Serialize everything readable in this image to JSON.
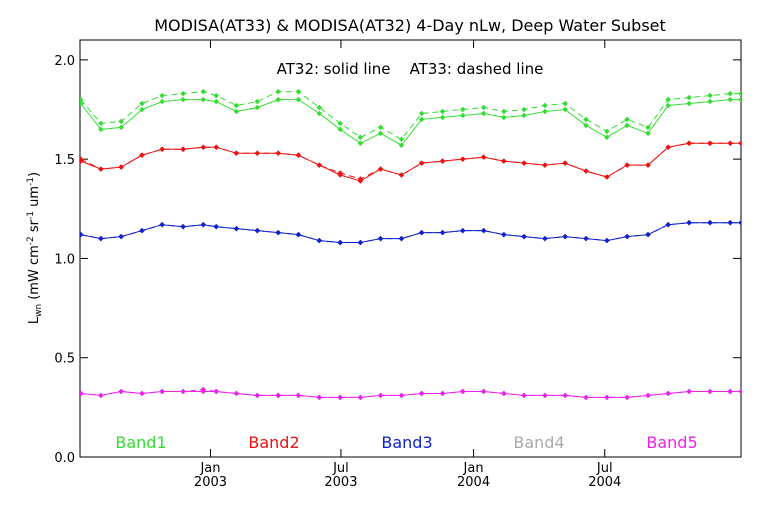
{
  "chart_data": {
    "type": "line",
    "title": "MODISA(AT33) & MODISA(AT32) 4-Day nLw, Deep Water Subset",
    "annotation": "AT32: solid line    AT33: dashed line",
    "ylabel_main": "L",
    "ylabel_sub": "wn",
    "ylabel_units": "(mW cm",
    "ylabel_exp1": "-2",
    "ylabel_sr": " sr",
    "ylabel_exp2": "-1",
    "ylabel_um": " um",
    "ylabel_exp3": "-1",
    "ylabel_close": ")",
    "ylim": [
      0.0,
      2.1
    ],
    "yticks": [
      {
        "value": 0.0,
        "label": "0.0"
      },
      {
        "value": 0.5,
        "label": "0.5"
      },
      {
        "value": 1.0,
        "label": "1.0"
      },
      {
        "value": 1.5,
        "label": "1.5"
      },
      {
        "value": 2.0,
        "label": "2.0"
      }
    ],
    "xlim": [
      "2002-07-04",
      "2005-01-06"
    ],
    "xticks": [
      {
        "date": "2003-01-01",
        "label1": "Jan",
        "label2": "2003"
      },
      {
        "date": "2003-07-01",
        "label1": "Jul",
        "label2": "2003"
      },
      {
        "date": "2004-01-01",
        "label1": "Jan",
        "label2": "2004"
      },
      {
        "date": "2004-07-01",
        "label1": "Jul",
        "label2": "2004"
      }
    ],
    "x": [
      "2002-07-05",
      "2002-08-02",
      "2002-08-30",
      "2002-09-28",
      "2002-10-26",
      "2002-11-24",
      "2002-12-22",
      "2003-01-09",
      "2003-02-06",
      "2003-03-07",
      "2003-04-05",
      "2003-05-03",
      "2003-06-01",
      "2003-06-30",
      "2003-07-28",
      "2003-08-25",
      "2003-09-23",
      "2003-10-21",
      "2003-11-19",
      "2003-12-17",
      "2004-01-15",
      "2004-02-12",
      "2004-03-11",
      "2004-04-09",
      "2004-05-07",
      "2004-06-05",
      "2004-07-04",
      "2004-08-01",
      "2004-08-30",
      "2004-09-27",
      "2004-10-26",
      "2004-11-24",
      "2004-12-22",
      "2005-01-06"
    ],
    "legend_placement": "bottom",
    "grid": false,
    "series": [
      {
        "name": "Band1",
        "color": "#33dd33",
        "style": "solid",
        "values": [
          1.78,
          1.65,
          1.66,
          1.75,
          1.79,
          1.8,
          1.8,
          1.79,
          1.74,
          1.76,
          1.8,
          1.8,
          1.73,
          1.65,
          1.58,
          1.63,
          1.57,
          1.7,
          1.71,
          1.72,
          1.73,
          1.71,
          1.72,
          1.74,
          1.75,
          1.67,
          1.61,
          1.67,
          1.63,
          1.77,
          1.78,
          1.79,
          1.8,
          1.8
        ]
      },
      {
        "name": "Band1",
        "color": "#33dd33",
        "style": "dashed",
        "values": [
          1.8,
          1.68,
          1.69,
          1.78,
          1.82,
          1.83,
          1.84,
          1.82,
          1.77,
          1.79,
          1.84,
          1.84,
          1.76,
          1.68,
          1.61,
          1.66,
          1.6,
          1.73,
          1.74,
          1.75,
          1.76,
          1.74,
          1.75,
          1.77,
          1.78,
          1.7,
          1.64,
          1.7,
          1.66,
          1.8,
          1.81,
          1.82,
          1.83,
          1.83
        ]
      },
      {
        "name": "Band2",
        "color": "#ee1111",
        "style": "solid",
        "values": [
          1.49,
          1.45,
          1.46,
          1.52,
          1.55,
          1.55,
          1.56,
          1.56,
          1.53,
          1.53,
          1.53,
          1.52,
          1.47,
          1.42,
          1.39,
          1.45,
          1.42,
          1.48,
          1.49,
          1.5,
          1.51,
          1.49,
          1.48,
          1.47,
          1.48,
          1.44,
          1.41,
          1.47,
          1.47,
          1.56,
          1.58,
          1.58,
          1.58,
          1.58
        ]
      },
      {
        "name": "Band2",
        "color": "#ee1111",
        "style": "dashed",
        "values": [
          1.5,
          1.45,
          1.46,
          1.52,
          1.55,
          1.55,
          1.56,
          1.56,
          1.53,
          1.53,
          1.53,
          1.52,
          1.47,
          1.43,
          1.4,
          1.45,
          1.42,
          1.48,
          1.49,
          1.5,
          1.51,
          1.49,
          1.48,
          1.47,
          1.48,
          1.44,
          1.41,
          1.47,
          1.47,
          1.56,
          1.58,
          1.58,
          1.58,
          1.58
        ]
      },
      {
        "name": "Band3",
        "color": "#1122cc",
        "style": "solid",
        "values": [
          1.12,
          1.1,
          1.11,
          1.14,
          1.17,
          1.16,
          1.17,
          1.16,
          1.15,
          1.14,
          1.13,
          1.12,
          1.09,
          1.08,
          1.08,
          1.1,
          1.1,
          1.13,
          1.13,
          1.14,
          1.14,
          1.12,
          1.11,
          1.1,
          1.11,
          1.1,
          1.09,
          1.11,
          1.12,
          1.17,
          1.18,
          1.18,
          1.18,
          1.18
        ]
      },
      {
        "name": "Band3",
        "color": "#1122cc",
        "style": "dashed",
        "values": [
          1.12,
          1.1,
          1.11,
          1.14,
          1.17,
          1.16,
          1.17,
          1.16,
          1.15,
          1.14,
          1.13,
          1.12,
          1.09,
          1.08,
          1.08,
          1.1,
          1.1,
          1.13,
          1.13,
          1.14,
          1.14,
          1.12,
          1.11,
          1.1,
          1.11,
          1.1,
          1.09,
          1.11,
          1.12,
          1.17,
          1.18,
          1.18,
          1.18,
          1.18
        ]
      },
      {
        "name": "Band5",
        "color": "#ee22ee",
        "style": "solid",
        "values": [
          0.32,
          0.31,
          0.33,
          0.32,
          0.33,
          0.33,
          0.33,
          0.33,
          0.32,
          0.31,
          0.31,
          0.31,
          0.3,
          0.3,
          0.3,
          0.31,
          0.31,
          0.32,
          0.32,
          0.33,
          0.33,
          0.32,
          0.31,
          0.31,
          0.31,
          0.3,
          0.3,
          0.3,
          0.31,
          0.32,
          0.33,
          0.33,
          0.33,
          0.33
        ]
      },
      {
        "name": "Band5",
        "color": "#ee22ee",
        "style": "dashed",
        "values": [
          0.32,
          0.31,
          0.33,
          0.32,
          0.33,
          0.33,
          0.34,
          0.33,
          0.32,
          0.31,
          0.31,
          0.31,
          0.3,
          0.3,
          0.3,
          0.31,
          0.31,
          0.32,
          0.32,
          0.33,
          0.33,
          0.32,
          0.31,
          0.31,
          0.31,
          0.3,
          0.3,
          0.3,
          0.31,
          0.32,
          0.33,
          0.33,
          0.33,
          0.33
        ]
      }
    ],
    "legend": [
      {
        "label": "Band1",
        "color": "#33dd33"
      },
      {
        "label": "Band2",
        "color": "#ee1111"
      },
      {
        "label": "Band3",
        "color": "#1122cc"
      },
      {
        "label": "Band4",
        "color": "#aaaaaa"
      },
      {
        "label": "Band5",
        "color": "#ee22ee"
      }
    ]
  }
}
